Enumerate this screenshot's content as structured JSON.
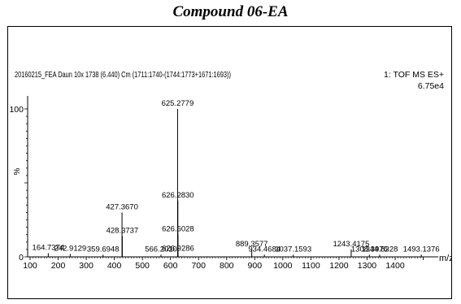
{
  "figure_title": "Compound 06-EA",
  "chart_data": {
    "type": "bar",
    "header_left": "20160215_FEA Daun 10x 1738 (6.440) Cm (1711:1740-(1744:1773+1671:1693))",
    "header_right_1": "1: TOF MS ES+",
    "header_right_2": "6.75e4",
    "xlabel": "m/z",
    "ylabel": "%",
    "xlim": [
      100,
      1500
    ],
    "ylim": [
      0,
      100
    ],
    "x_ticks": [
      100,
      200,
      300,
      400,
      500,
      600,
      700,
      800,
      900,
      1000,
      1100,
      1200,
      1300,
      1400
    ],
    "y_ticks": [
      0,
      100
    ],
    "peaks": [
      {
        "x": 164.7374,
        "y": 2.5
      },
      {
        "x": 242.9129,
        "y": 2.0
      },
      {
        "x": 359.6948,
        "y": 1.5
      },
      {
        "x": 427.367,
        "y": 30.0
      },
      {
        "x": 428.3737,
        "y": 14.0
      },
      {
        "x": 566.201,
        "y": 1.5
      },
      {
        "x": 625.2779,
        "y": 100.0
      },
      {
        "x": 626.283,
        "y": 38.0
      },
      {
        "x": 626.6028,
        "y": 15.0
      },
      {
        "x": 626.9286,
        "y": 2.0
      },
      {
        "x": 889.3577,
        "y": 5.0
      },
      {
        "x": 934.4684,
        "y": 1.5
      },
      {
        "x": 1037.1593,
        "y": 1.5
      },
      {
        "x": 1243.4175,
        "y": 5.0
      },
      {
        "x": 1308.3976,
        "y": 1.5
      },
      {
        "x": 1344.8328,
        "y": 1.5
      },
      {
        "x": 1493.1376,
        "y": 1.5
      }
    ],
    "peak_labels": [
      {
        "x": 625.2779,
        "text": "625.2779"
      },
      {
        "x": 626.283,
        "text": "626.2830"
      },
      {
        "x": 427.367,
        "text": "427.3670"
      },
      {
        "x": 428.3737,
        "text": "428.3737"
      },
      {
        "x": 626.6028,
        "text": "626.6028"
      },
      {
        "x": 889.3577,
        "text": "889.3577"
      },
      {
        "x": 1243.4175,
        "text": "1243.4175"
      },
      {
        "x": 164.7374,
        "text": "164.7374"
      },
      {
        "x": 242.9129,
        "text": "242.9129"
      },
      {
        "x": 359.6948,
        "text": "359.6948"
      },
      {
        "x": 566.201,
        "text": "566.2010"
      },
      {
        "x": 626.9286,
        "text": "626.9286"
      },
      {
        "x": 934.4684,
        "text": "934.4684"
      },
      {
        "x": 1037.1593,
        "text": "1037.1593"
      },
      {
        "x": 1308.3976,
        "text": "1308.3976"
      },
      {
        "x": 1344.8328,
        "text": "1344.8328"
      },
      {
        "x": 1493.1376,
        "text": "1493.1376"
      }
    ],
    "grid": false
  }
}
